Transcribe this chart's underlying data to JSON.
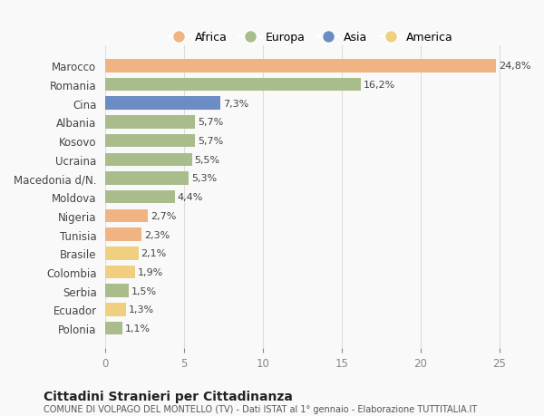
{
  "categories": [
    "Marocco",
    "Romania",
    "Cina",
    "Albania",
    "Kosovo",
    "Ucraina",
    "Macedonia d/N.",
    "Moldova",
    "Nigeria",
    "Tunisia",
    "Brasile",
    "Colombia",
    "Serbia",
    "Ecuador",
    "Polonia"
  ],
  "values": [
    24.8,
    16.2,
    7.3,
    5.7,
    5.7,
    5.5,
    5.3,
    4.4,
    2.7,
    2.3,
    2.1,
    1.9,
    1.5,
    1.3,
    1.1
  ],
  "labels": [
    "24,8%",
    "16,2%",
    "7,3%",
    "5,7%",
    "5,7%",
    "5,5%",
    "5,3%",
    "4,4%",
    "2,7%",
    "2,3%",
    "2,1%",
    "1,9%",
    "1,5%",
    "1,3%",
    "1,1%"
  ],
  "colors": [
    "#f0b482",
    "#a8bc8c",
    "#6b8cc4",
    "#a8bc8c",
    "#a8bc8c",
    "#a8bc8c",
    "#a8bc8c",
    "#a8bc8c",
    "#f0b482",
    "#f0b482",
    "#f0d080",
    "#f0d080",
    "#a8bc8c",
    "#f0d080",
    "#a8bc8c"
  ],
  "legend_labels": [
    "Africa",
    "Europa",
    "Asia",
    "America"
  ],
  "legend_colors": [
    "#f0b482",
    "#a8bc8c",
    "#6b8cc4",
    "#f0d080"
  ],
  "title": "Cittadini Stranieri per Cittadinanza",
  "subtitle": "COMUNE DI VOLPAGO DEL MONTELLO (TV) - Dati ISTAT al 1° gennaio - Elaborazione TUTTITALIA.IT",
  "xlim": [
    0,
    26
  ],
  "xticks": [
    0,
    5,
    10,
    15,
    20,
    25
  ],
  "background_color": "#f9f9f9",
  "grid_color": "#dddddd"
}
